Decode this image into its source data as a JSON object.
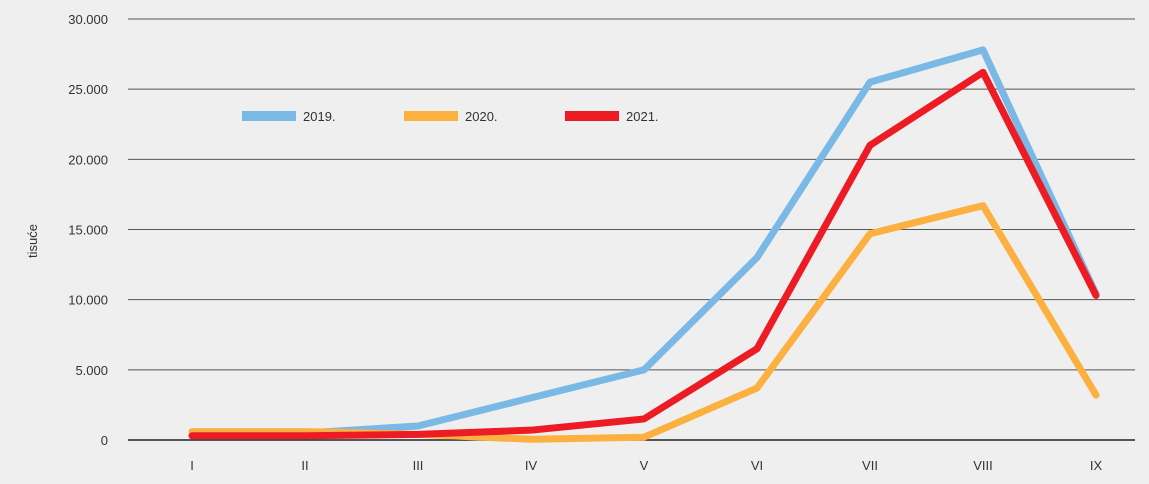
{
  "chart_data": {
    "type": "line",
    "categories": [
      "I",
      "II",
      "III",
      "IV",
      "V",
      "VI",
      "VII",
      "VIII",
      "IX"
    ],
    "series": [
      {
        "name": "2019.",
        "color": "#7ab8e6",
        "values": [
          300,
          500,
          1000,
          3000,
          5000,
          13000,
          25500,
          27800,
          10400
        ]
      },
      {
        "name": "2020.",
        "color": "#fbb040",
        "values": [
          600,
          600,
          400,
          50,
          200,
          3700,
          14700,
          16700,
          3200
        ]
      },
      {
        "name": "2021.",
        "color": "#ed1c24",
        "values": [
          300,
          300,
          400,
          700,
          1500,
          6500,
          21000,
          26200,
          10300
        ]
      }
    ],
    "ylabel": "tisuće",
    "ylim": [
      0,
      30000
    ],
    "yticks": [
      "0",
      "5.000",
      "10.000",
      "15.000",
      "20.000",
      "25.000",
      "30.000"
    ],
    "grid": "horizontal",
    "legend": "top-left"
  }
}
